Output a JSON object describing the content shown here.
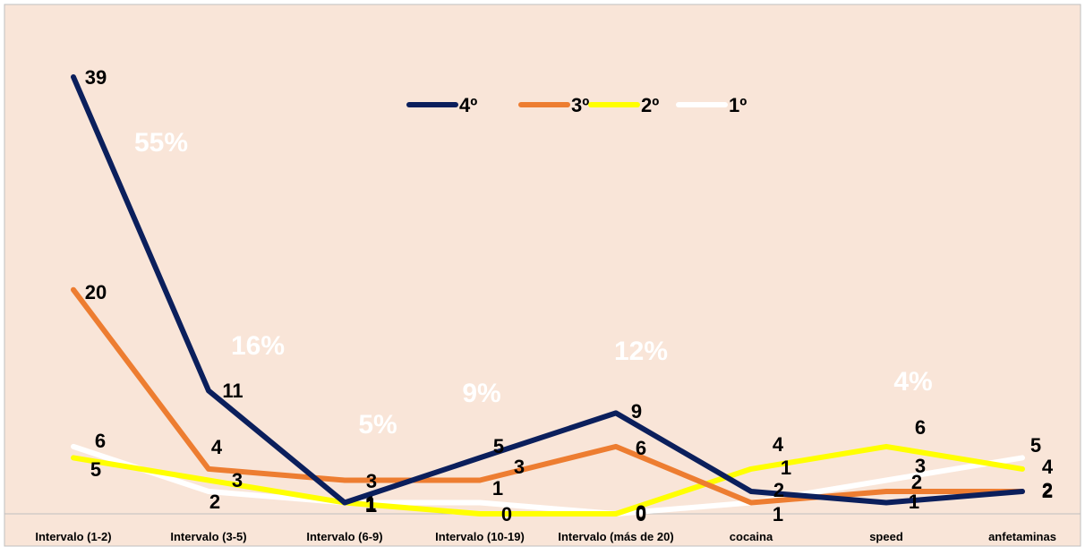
{
  "chart_data": {
    "type": "line",
    "title": "",
    "xlabel": "",
    "ylabel": "",
    "categories": [
      "Intervalo (1-2)",
      "Intervalo (3-5)",
      "Intervalo (6-9)",
      "Intervalo (10-19)",
      "Intervalo (más de 20)",
      "cocaina",
      "speed",
      "anfetaminas"
    ],
    "series": [
      {
        "name": "4º",
        "color": "#0b1f5c",
        "values": [
          39,
          11,
          1,
          5,
          9,
          2,
          1,
          2
        ]
      },
      {
        "name": "3º",
        "color": "#ed7d31",
        "values": [
          20,
          4,
          3,
          3,
          6,
          1,
          2,
          2
        ]
      },
      {
        "name": "2º",
        "color": "#ffff00",
        "values": [
          5,
          3,
          1,
          0,
          0,
          4,
          6,
          4
        ]
      },
      {
        "name": "1º",
        "color": "#ffffff",
        "values": [
          6,
          2,
          1,
          1,
          0,
          1,
          3,
          5
        ]
      }
    ],
    "percent_annotations": [
      "55%",
      "16%",
      "5%",
      "9%",
      "12%",
      "4%"
    ],
    "ylim": [
      0,
      40
    ],
    "legend": "top-center",
    "grid": false,
    "background": "#f9e5d8"
  }
}
